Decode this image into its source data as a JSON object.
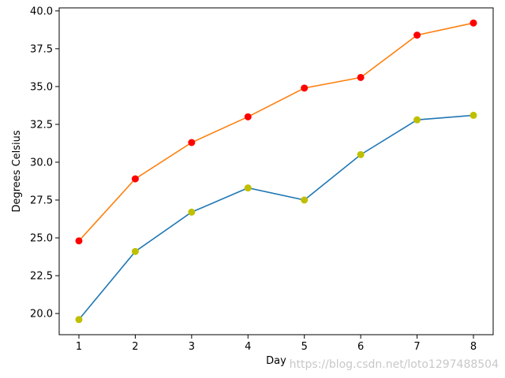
{
  "chart_data": {
    "type": "line",
    "title": "",
    "xlabel": "Day",
    "ylabel": "Degrees Celsius",
    "x": [
      1,
      2,
      3,
      4,
      5,
      6,
      7,
      8
    ],
    "xlim": [
      0.65,
      8.35
    ],
    "ylim": [
      18.6,
      40.2
    ],
    "xticks": [
      "1",
      "2",
      "3",
      "4",
      "5",
      "6",
      "7",
      "8"
    ],
    "yticks": [
      "20.0",
      "22.5",
      "25.0",
      "27.5",
      "30.0",
      "32.5",
      "35.0",
      "37.5",
      "40.0"
    ],
    "grid": false,
    "series": [
      {
        "values": [
          19.6,
          24.1,
          26.7,
          28.3,
          27.5,
          30.5,
          32.8,
          33.1
        ],
        "line_color": "#1f77b4",
        "marker_color": "#bfbf00"
      },
      {
        "values": [
          24.8,
          28.9,
          31.3,
          33.0,
          34.9,
          35.6,
          38.4,
          39.2
        ],
        "line_color": "#ff7f0e",
        "marker_color": "#ff0000"
      }
    ]
  },
  "watermark": "https://blog.csdn.net/loto1297488504"
}
